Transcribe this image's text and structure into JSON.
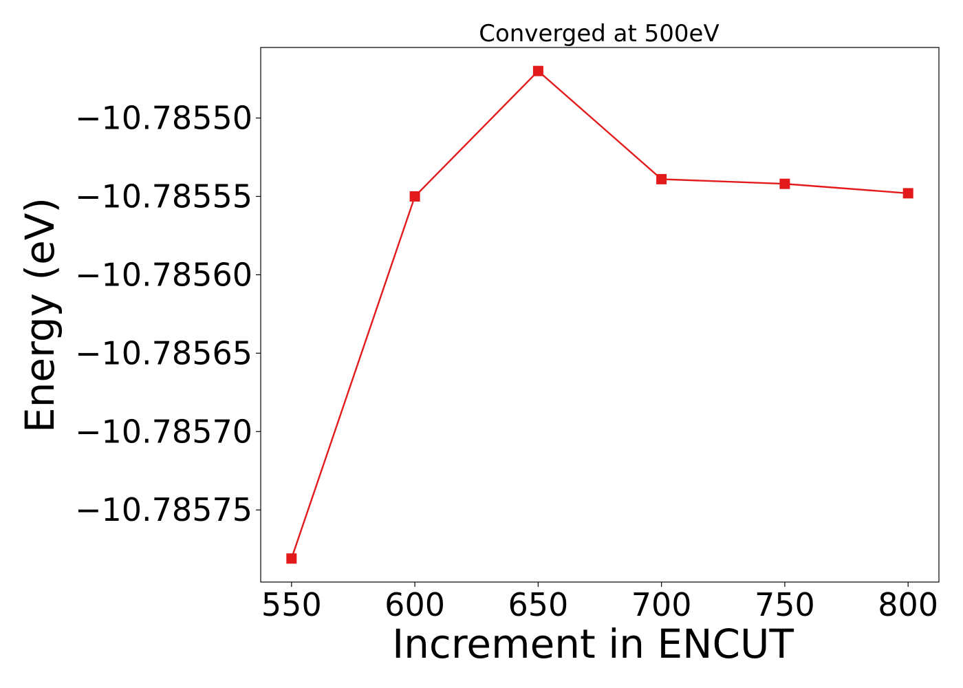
{
  "chart_data": {
    "type": "line",
    "title": "Converged at 500eV",
    "xlabel": "Increment in ENCUT",
    "ylabel": "Energy (eV)",
    "x": [
      550,
      600,
      650,
      700,
      750,
      800
    ],
    "xticks": [
      550,
      600,
      650,
      700,
      750,
      800
    ],
    "xtick_labels": [
      "550",
      "600",
      "650",
      "700",
      "750",
      "800"
    ],
    "xlim": [
      537.5,
      812.5
    ],
    "series": [
      {
        "values": [
          -10.785781,
          -10.78555,
          -10.78547,
          -10.785539,
          -10.785542,
          -10.785548
        ],
        "color": "#e31a1c",
        "marker": "square"
      }
    ],
    "yticks": [
      -10.7855,
      -10.78555,
      -10.7856,
      -10.78565,
      -10.7857,
      -10.78575
    ],
    "ytick_labels": [
      "−10.78550",
      "−10.78555",
      "−10.78560",
      "−10.78565",
      "−10.78570",
      "−10.78575"
    ],
    "ylim": [
      -10.785796,
      -10.785455
    ],
    "grid": false,
    "legend": "none"
  }
}
